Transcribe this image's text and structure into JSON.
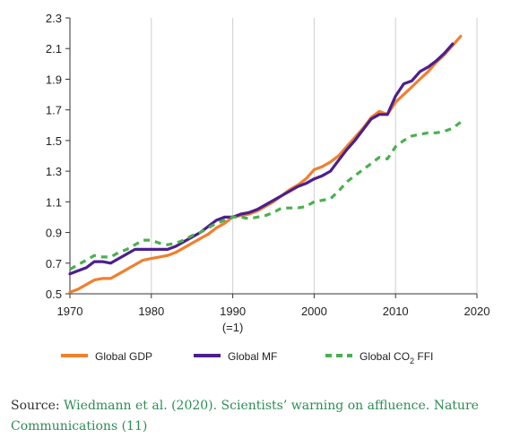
{
  "chart_data": {
    "type": "line",
    "x_ticks": [
      "1970",
      "1980",
      "1990",
      "2000",
      "2010",
      "2020"
    ],
    "x_base_note": "(=1)",
    "y_ticks": [
      "0.5",
      "0.7",
      "0.9",
      "1.1",
      "1.3",
      "1.5",
      "1.7",
      "1.9",
      "2.1",
      "2.3"
    ],
    "xlim": [
      1970,
      2020
    ],
    "ylim": [
      0.5,
      2.3
    ],
    "grid": "vertical",
    "legend_position": "bottom",
    "series": [
      {
        "name": "Global GDP",
        "color": "#f07f2e",
        "style": "solid",
        "points": [
          [
            1970,
            0.51
          ],
          [
            1971,
            0.53
          ],
          [
            1972,
            0.56
          ],
          [
            1973,
            0.59
          ],
          [
            1974,
            0.6
          ],
          [
            1975,
            0.6
          ],
          [
            1976,
            0.63
          ],
          [
            1977,
            0.66
          ],
          [
            1978,
            0.69
          ],
          [
            1979,
            0.72
          ],
          [
            1980,
            0.73
          ],
          [
            1981,
            0.74
          ],
          [
            1982,
            0.75
          ],
          [
            1983,
            0.77
          ],
          [
            1984,
            0.8
          ],
          [
            1985,
            0.83
          ],
          [
            1986,
            0.86
          ],
          [
            1987,
            0.89
          ],
          [
            1988,
            0.93
          ],
          [
            1989,
            0.96
          ],
          [
            1990,
            1.0
          ],
          [
            1991,
            1.01
          ],
          [
            1992,
            1.02
          ],
          [
            1993,
            1.04
          ],
          [
            1994,
            1.07
          ],
          [
            1995,
            1.1
          ],
          [
            1996,
            1.14
          ],
          [
            1997,
            1.18
          ],
          [
            1998,
            1.21
          ],
          [
            1999,
            1.25
          ],
          [
            2000,
            1.31
          ],
          [
            2001,
            1.33
          ],
          [
            2002,
            1.36
          ],
          [
            2003,
            1.4
          ],
          [
            2004,
            1.46
          ],
          [
            2005,
            1.52
          ],
          [
            2006,
            1.58
          ],
          [
            2007,
            1.65
          ],
          [
            2008,
            1.69
          ],
          [
            2009,
            1.67
          ],
          [
            2010,
            1.75
          ],
          [
            2011,
            1.8
          ],
          [
            2012,
            1.85
          ],
          [
            2013,
            1.9
          ],
          [
            2014,
            1.95
          ],
          [
            2015,
            2.01
          ],
          [
            2016,
            2.06
          ],
          [
            2017,
            2.12
          ],
          [
            2018,
            2.18
          ]
        ]
      },
      {
        "name": "Global MF",
        "color": "#4b1f8e",
        "style": "solid",
        "points": [
          [
            1970,
            0.63
          ],
          [
            1971,
            0.65
          ],
          [
            1972,
            0.67
          ],
          [
            1973,
            0.71
          ],
          [
            1974,
            0.71
          ],
          [
            1975,
            0.7
          ],
          [
            1976,
            0.73
          ],
          [
            1977,
            0.76
          ],
          [
            1978,
            0.79
          ],
          [
            1979,
            0.79
          ],
          [
            1980,
            0.79
          ],
          [
            1981,
            0.79
          ],
          [
            1982,
            0.79
          ],
          [
            1983,
            0.81
          ],
          [
            1984,
            0.84
          ],
          [
            1985,
            0.87
          ],
          [
            1986,
            0.9
          ],
          [
            1987,
            0.94
          ],
          [
            1988,
            0.98
          ],
          [
            1989,
            1.0
          ],
          [
            1990,
            1.0
          ],
          [
            1991,
            1.02
          ],
          [
            1992,
            1.03
          ],
          [
            1993,
            1.05
          ],
          [
            1994,
            1.08
          ],
          [
            1995,
            1.11
          ],
          [
            1996,
            1.14
          ],
          [
            1997,
            1.17
          ],
          [
            1998,
            1.2
          ],
          [
            1999,
            1.22
          ],
          [
            2000,
            1.25
          ],
          [
            2001,
            1.27
          ],
          [
            2002,
            1.3
          ],
          [
            2003,
            1.37
          ],
          [
            2004,
            1.44
          ],
          [
            2005,
            1.5
          ],
          [
            2006,
            1.57
          ],
          [
            2007,
            1.64
          ],
          [
            2008,
            1.67
          ],
          [
            2009,
            1.67
          ],
          [
            2010,
            1.79
          ],
          [
            2011,
            1.87
          ],
          [
            2012,
            1.89
          ],
          [
            2013,
            1.95
          ],
          [
            2014,
            1.98
          ],
          [
            2015,
            2.02
          ],
          [
            2016,
            2.07
          ],
          [
            2017,
            2.13
          ]
        ]
      },
      {
        "name": "Global CO",
        "name_subscript": "2",
        "name_suffix": " FFI",
        "color": "#4caf50",
        "style": "dashed",
        "points": [
          [
            1970,
            0.66
          ],
          [
            1971,
            0.69
          ],
          [
            1972,
            0.72
          ],
          [
            1973,
            0.75
          ],
          [
            1974,
            0.74
          ],
          [
            1975,
            0.74
          ],
          [
            1976,
            0.77
          ],
          [
            1977,
            0.79
          ],
          [
            1978,
            0.82
          ],
          [
            1979,
            0.85
          ],
          [
            1980,
            0.85
          ],
          [
            1981,
            0.83
          ],
          [
            1982,
            0.82
          ],
          [
            1983,
            0.83
          ],
          [
            1984,
            0.85
          ],
          [
            1985,
            0.88
          ],
          [
            1986,
            0.9
          ],
          [
            1987,
            0.93
          ],
          [
            1988,
            0.96
          ],
          [
            1989,
            0.98
          ],
          [
            1990,
            1.0
          ],
          [
            1991,
            1.0
          ],
          [
            1992,
            0.99
          ],
          [
            1993,
            1.0
          ],
          [
            1994,
            1.01
          ],
          [
            1995,
            1.03
          ],
          [
            1996,
            1.06
          ],
          [
            1997,
            1.06
          ],
          [
            1998,
            1.06
          ],
          [
            1999,
            1.07
          ],
          [
            2000,
            1.1
          ],
          [
            2001,
            1.11
          ],
          [
            2002,
            1.12
          ],
          [
            2003,
            1.17
          ],
          [
            2004,
            1.23
          ],
          [
            2005,
            1.27
          ],
          [
            2006,
            1.31
          ],
          [
            2007,
            1.35
          ],
          [
            2008,
            1.39
          ],
          [
            2009,
            1.38
          ],
          [
            2010,
            1.46
          ],
          [
            2011,
            1.5
          ],
          [
            2012,
            1.53
          ],
          [
            2013,
            1.54
          ],
          [
            2014,
            1.55
          ],
          [
            2015,
            1.55
          ],
          [
            2016,
            1.56
          ],
          [
            2017,
            1.58
          ],
          [
            2018,
            1.62
          ]
        ]
      }
    ]
  },
  "source": {
    "prefix": "Source: ",
    "link_text": "Wiedmann et al. (2020). Scientists’ warning on affluence. Nature Communications (11)"
  }
}
